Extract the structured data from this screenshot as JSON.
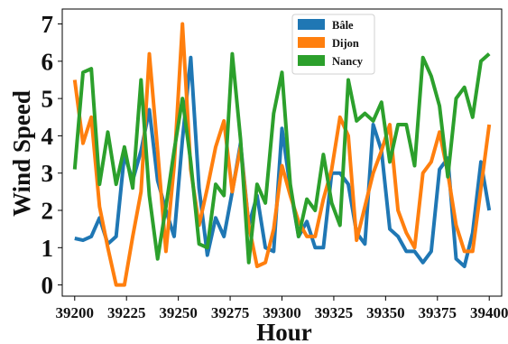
{
  "chart_data": {
    "type": "line",
    "title": "",
    "xlabel": "Hour",
    "ylabel": "Wind Speed",
    "xlim": [
      39194,
      39406
    ],
    "ylim": [
      -0.3,
      7.4
    ],
    "x_ticks": [
      39200,
      39225,
      39250,
      39275,
      39300,
      39325,
      39350,
      39375,
      39400
    ],
    "y_ticks": [
      0,
      1,
      2,
      3,
      4,
      5,
      6,
      7
    ],
    "legend_position": "top-center",
    "grid": false,
    "x": [
      39200,
      39204,
      39208,
      39212,
      39216,
      39220,
      39224,
      39228,
      39232,
      39236,
      39240,
      39244,
      39248,
      39252,
      39256,
      39260,
      39264,
      39268,
      39272,
      39276,
      39280,
      39284,
      39288,
      39292,
      39296,
      39300,
      39304,
      39308,
      39312,
      39316,
      39320,
      39324,
      39328,
      39332,
      39336,
      39340,
      39344,
      39348,
      39352,
      39356,
      39360,
      39364,
      39368,
      39372,
      39376,
      39380,
      39384,
      39388,
      39392,
      39396,
      39400
    ],
    "series": [
      {
        "name": "Bâle",
        "color": "#1f77b4",
        "values": [
          1.25,
          1.2,
          1.3,
          1.8,
          1.1,
          1.3,
          3.5,
          2.8,
          3.6,
          4.7,
          2.8,
          2.0,
          1.3,
          3.9,
          6.1,
          2.6,
          0.8,
          1.8,
          1.3,
          2.5,
          3.8,
          1.6,
          2.4,
          1.0,
          0.9,
          4.2,
          2.6,
          1.3,
          1.7,
          1.0,
          1.0,
          3.0,
          3.0,
          2.7,
          1.4,
          1.1,
          4.3,
          3.6,
          1.5,
          1.3,
          0.9,
          0.9,
          0.6,
          0.9,
          3.1,
          3.4,
          0.7,
          0.5,
          1.4,
          3.3,
          2.0
        ]
      },
      {
        "name": "Dijon",
        "color": "#ff7f0e",
        "values": [
          5.5,
          3.8,
          4.5,
          2.1,
          1.0,
          0.0,
          0.0,
          1.3,
          2.5,
          6.2,
          3.6,
          0.9,
          3.2,
          7.0,
          3.1,
          1.6,
          2.6,
          3.7,
          4.4,
          2.5,
          3.7,
          1.6,
          0.5,
          0.6,
          1.5,
          3.2,
          2.4,
          1.7,
          1.3,
          1.3,
          2.3,
          3.1,
          4.5,
          4.0,
          1.2,
          2.1,
          3.0,
          3.6,
          4.3,
          2.0,
          1.4,
          1.0,
          3.0,
          3.3,
          4.1,
          3.0,
          1.6,
          0.9,
          0.9,
          2.6,
          4.3
        ]
      },
      {
        "name": "Nancy",
        "color": "#2ca02c",
        "values": [
          3.1,
          5.7,
          5.8,
          2.7,
          4.1,
          2.7,
          3.7,
          2.6,
          5.5,
          2.4,
          0.7,
          2.1,
          3.6,
          5.0,
          3.3,
          1.1,
          1.0,
          2.7,
          2.4,
          6.2,
          3.9,
          0.6,
          2.7,
          2.2,
          4.6,
          5.7,
          2.7,
          1.3,
          2.3,
          2.0,
          3.5,
          2.2,
          1.6,
          5.5,
          4.4,
          4.6,
          4.4,
          4.9,
          3.3,
          4.3,
          4.3,
          3.2,
          6.1,
          5.6,
          4.8,
          2.9,
          5.0,
          5.3,
          4.5,
          6.0,
          6.2
        ]
      }
    ]
  }
}
